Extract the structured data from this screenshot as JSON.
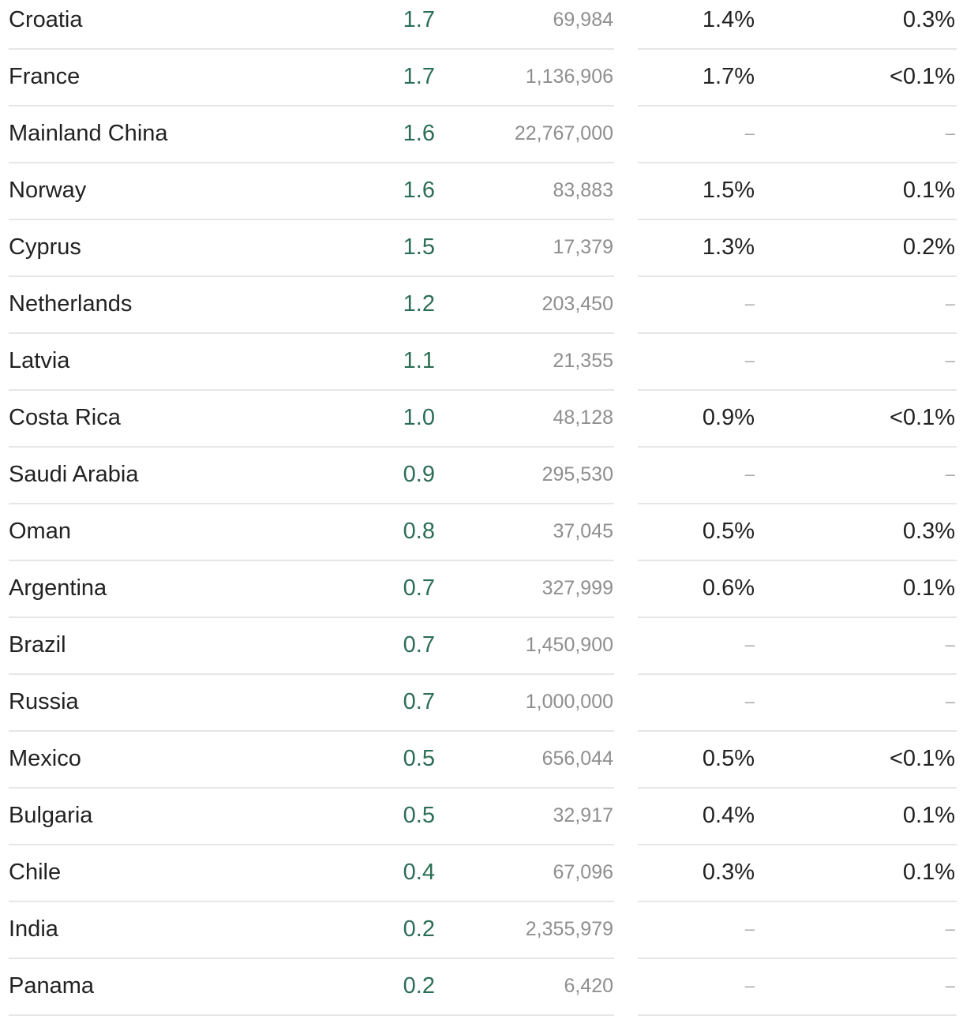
{
  "rows": [
    {
      "country": "Croatia",
      "rate": "1.7",
      "count": "69,984",
      "pct1": "1.4%",
      "pct2": "0.3%"
    },
    {
      "country": "France",
      "rate": "1.7",
      "count": "1,136,906",
      "pct1": "1.7%",
      "pct2": "<0.1%"
    },
    {
      "country": "Mainland China",
      "rate": "1.6",
      "count": "22,767,000",
      "pct1": "–",
      "pct2": "–"
    },
    {
      "country": "Norway",
      "rate": "1.6",
      "count": "83,883",
      "pct1": "1.5%",
      "pct2": "0.1%"
    },
    {
      "country": "Cyprus",
      "rate": "1.5",
      "count": "17,379",
      "pct1": "1.3%",
      "pct2": "0.2%"
    },
    {
      "country": "Netherlands",
      "rate": "1.2",
      "count": "203,450",
      "pct1": "–",
      "pct2": "–"
    },
    {
      "country": "Latvia",
      "rate": "1.1",
      "count": "21,355",
      "pct1": "–",
      "pct2": "–"
    },
    {
      "country": "Costa Rica",
      "rate": "1.0",
      "count": "48,128",
      "pct1": "0.9%",
      "pct2": "<0.1%"
    },
    {
      "country": "Saudi Arabia",
      "rate": "0.9",
      "count": "295,530",
      "pct1": "–",
      "pct2": "–"
    },
    {
      "country": "Oman",
      "rate": "0.8",
      "count": "37,045",
      "pct1": "0.5%",
      "pct2": "0.3%"
    },
    {
      "country": "Argentina",
      "rate": "0.7",
      "count": "327,999",
      "pct1": "0.6%",
      "pct2": "0.1%"
    },
    {
      "country": "Brazil",
      "rate": "0.7",
      "count": "1,450,900",
      "pct1": "–",
      "pct2": "–"
    },
    {
      "country": "Russia",
      "rate": "0.7",
      "count": "1,000,000",
      "pct1": "–",
      "pct2": "–"
    },
    {
      "country": "Mexico",
      "rate": "0.5",
      "count": "656,044",
      "pct1": "0.5%",
      "pct2": "<0.1%"
    },
    {
      "country": "Bulgaria",
      "rate": "0.5",
      "count": "32,917",
      "pct1": "0.4%",
      "pct2": "0.1%"
    },
    {
      "country": "Chile",
      "rate": "0.4",
      "count": "67,096",
      "pct1": "0.3%",
      "pct2": "0.1%"
    },
    {
      "country": "India",
      "rate": "0.2",
      "count": "2,355,979",
      "pct1": "–",
      "pct2": "–"
    },
    {
      "country": "Panama",
      "rate": "0.2",
      "count": "6,420",
      "pct1": "–",
      "pct2": "–"
    }
  ],
  "colors": {
    "rate_text": "#2c6e55",
    "count_text": "#8f8f8f",
    "primary_text": "#222222",
    "divider": "#e6e6e6"
  }
}
